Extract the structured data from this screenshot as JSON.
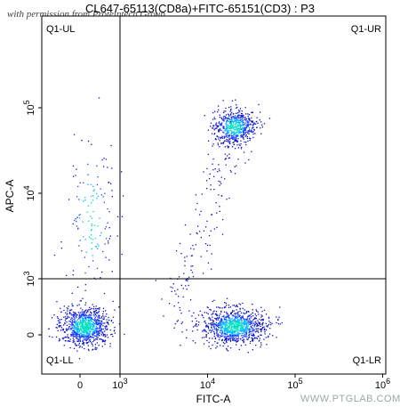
{
  "chart_data": {
    "type": "scatter",
    "title": "CL647-65113(CD8a)+FITC-65151(CD3) : P3",
    "xlabel": "FITC-A",
    "ylabel": "APC-A",
    "x_scale": "biexponential",
    "y_scale": "biexponential",
    "x_ticks": [
      {
        "value": 0,
        "label": "0"
      },
      {
        "value": 1000,
        "label": "10^3"
      },
      {
        "value": 10000,
        "label": "10^4"
      },
      {
        "value": 100000,
        "label": "10^5"
      },
      {
        "value": 1000000,
        "label": "10^6"
      }
    ],
    "y_ticks": [
      {
        "value": 0,
        "label": "0"
      },
      {
        "value": 1000,
        "label": "10^3"
      },
      {
        "value": 10000,
        "label": "10^4"
      },
      {
        "value": 100000,
        "label": "10^5"
      }
    ],
    "gates": {
      "x": 1000,
      "y": 1000
    },
    "quadrants": {
      "ul": "Q1-UL",
      "ur": "Q1-UR",
      "ll": "Q1-LL",
      "lr": "Q1-LR"
    },
    "populations": [
      {
        "quadrant": "Q1-LL",
        "x_center": 0,
        "y_center": 0,
        "description": "CD3- CD8a- dense cluster"
      },
      {
        "quadrant": "Q1-LR",
        "x_center": 20000,
        "y_center": 0,
        "description": "CD3+ CD8a- dense cluster"
      },
      {
        "quadrant": "Q1-UR",
        "x_center": 20000,
        "y_center": 60000,
        "description": "CD3+ CD8a+ dense cluster"
      },
      {
        "quadrant": "Q1-UL",
        "x_center": 0,
        "y_center": 5000,
        "description": "sparse events"
      }
    ],
    "point_colors": [
      "#0b10c8",
      "#1a3cff",
      "#00b4ff",
      "#00e0c0"
    ]
  },
  "watermarks": {
    "top": "with permission from Proteintech Group",
    "bottom": "WWW.PTGLAB.COM"
  }
}
